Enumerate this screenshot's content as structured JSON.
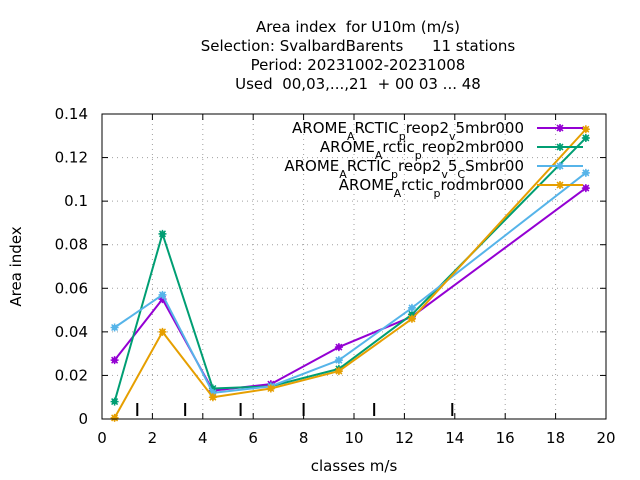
{
  "chart_data": {
    "type": "line",
    "title_lines": [
      "Area index  for U10m (m/s)",
      "Selection: SvalbardBarents      11 stations",
      "Period: 20231002-20231008",
      "Used  00,03,...,21  + 00 03 ... 48"
    ],
    "xlabel": "classes m/s",
    "ylabel": "Area index",
    "xlim": [
      0,
      20
    ],
    "ylim": [
      0,
      0.14
    ],
    "x_ticks": [
      0,
      2,
      4,
      6,
      8,
      10,
      12,
      14,
      16,
      18,
      20
    ],
    "y_ticks": [
      0,
      0.02,
      0.04,
      0.06,
      0.08,
      0.1,
      0.12,
      0.14
    ],
    "x_tick_labels": [
      "0",
      "2",
      "4",
      "6",
      "8",
      "10",
      "12",
      "14",
      "16",
      "18",
      "20"
    ],
    "y_tick_labels": [
      "0",
      "0.02",
      "0.04",
      "0.06",
      "0.08",
      "0.1",
      "0.12",
      "0.14"
    ],
    "class_boundaries": [
      1.4,
      3.3,
      5.5,
      8.0,
      10.8,
      13.9
    ],
    "grid": "dotted",
    "legend_position": "top-right",
    "series": [
      {
        "legend": [
          {
            "t": "AROME",
            "s": "normal"
          },
          {
            "t": "A",
            "s": "sub"
          },
          {
            "t": "RCTIC",
            "s": "normal"
          },
          {
            "t": "p",
            "s": "sub"
          },
          {
            "t": "reop2",
            "s": "normal"
          },
          {
            "t": "v",
            "s": "sub"
          },
          {
            "t": "5mbr000",
            "s": "normal"
          }
        ],
        "color": "#9400d3",
        "x": [
          0.5,
          2.4,
          4.4,
          6.7,
          9.4,
          12.3,
          19.2
        ],
        "y": [
          0.027,
          0.055,
          0.013,
          0.016,
          0.033,
          0.047,
          0.106
        ]
      },
      {
        "legend": [
          {
            "t": "AROME",
            "s": "normal"
          },
          {
            "t": "A",
            "s": "sub"
          },
          {
            "t": "rctic",
            "s": "normal"
          },
          {
            "t": "p",
            "s": "sub"
          },
          {
            "t": "reop2mbr000",
            "s": "normal"
          }
        ],
        "color": "#009e73",
        "x": [
          0.5,
          2.4,
          4.4,
          6.7,
          9.4,
          12.3,
          19.2
        ],
        "y": [
          0.008,
          0.085,
          0.014,
          0.015,
          0.023,
          0.048,
          0.129
        ]
      },
      {
        "legend": [
          {
            "t": "AROME",
            "s": "normal"
          },
          {
            "t": "A",
            "s": "sub"
          },
          {
            "t": "RCTIC",
            "s": "normal"
          },
          {
            "t": "p",
            "s": "sub"
          },
          {
            "t": "reop2",
            "s": "normal"
          },
          {
            "t": "v",
            "s": "sub"
          },
          {
            "t": "5",
            "s": "normal"
          },
          {
            "t": "C",
            "s": "sub"
          },
          {
            "t": "Smbr00",
            "s": "normal"
          }
        ],
        "color": "#56b4e9",
        "x": [
          0.5,
          2.4,
          4.4,
          6.7,
          9.4,
          12.3,
          19.2
        ],
        "y": [
          0.042,
          0.057,
          0.012,
          0.015,
          0.027,
          0.051,
          0.113
        ]
      },
      {
        "legend": [
          {
            "t": "AROME",
            "s": "normal"
          },
          {
            "t": "A",
            "s": "sub"
          },
          {
            "t": "rctic",
            "s": "normal"
          },
          {
            "t": "p",
            "s": "sub"
          },
          {
            "t": "rodmbr000",
            "s": "normal"
          }
        ],
        "color": "#e69f00",
        "x": [
          0.5,
          2.4,
          4.4,
          6.7,
          9.4,
          12.3,
          19.2
        ],
        "y": [
          0.0005,
          0.04,
          0.01,
          0.014,
          0.022,
          0.046,
          0.133
        ]
      }
    ]
  }
}
